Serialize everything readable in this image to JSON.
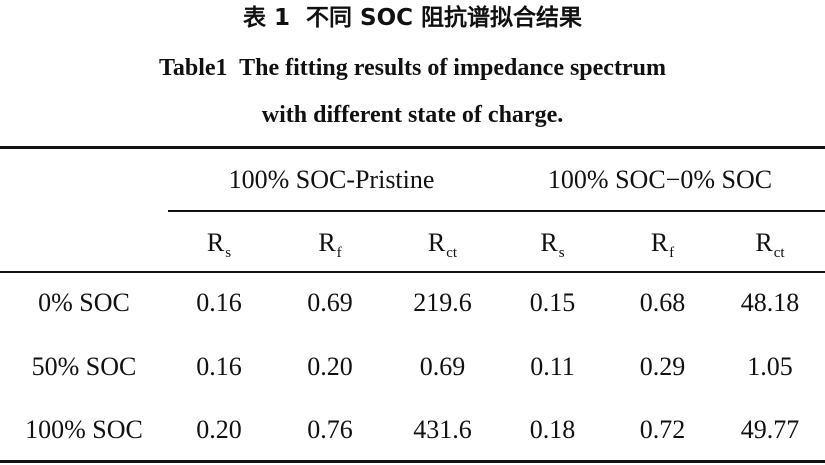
{
  "caption": {
    "zh": "表 1  不同 SOC 阻抗谱拟合结果",
    "en_line1": "Table1  The fitting results of impedance spectrum",
    "en_line2": "with different state of charge."
  },
  "table": {
    "corner": "",
    "groups": [
      "100% SOC-Pristine",
      "100% SOC−0% SOC"
    ],
    "columns": [
      {
        "main": "R",
        "sub": "s"
      },
      {
        "main": "R",
        "sub": "f"
      },
      {
        "main": "R",
        "sub": "ct"
      },
      {
        "main": "R",
        "sub": "s"
      },
      {
        "main": "R",
        "sub": "f"
      },
      {
        "main": "R",
        "sub": "ct"
      }
    ],
    "rows": [
      {
        "label": "0% SOC",
        "values": [
          "0.16",
          "0.69",
          "219.6",
          "0.15",
          "0.68",
          "48.18"
        ]
      },
      {
        "label": "50% SOC",
        "values": [
          "0.16",
          "0.20",
          "0.69",
          "0.11",
          "0.29",
          "1.05"
        ]
      },
      {
        "label": "100% SOC",
        "values": [
          "0.20",
          "0.76",
          "431.6",
          "0.18",
          "0.72",
          "49.77"
        ]
      }
    ]
  }
}
